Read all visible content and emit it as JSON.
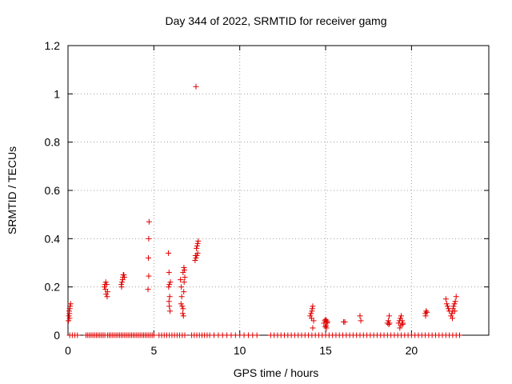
{
  "chart_data": {
    "type": "scatter",
    "title": "Day 344 of 2022, SRMTID for receiver gamg",
    "xlabel": "GPS time / hours",
    "ylabel": "SRMTID / TECUs",
    "xlim": [
      0,
      24.5
    ],
    "ylim": [
      0,
      1.2
    ],
    "xticks": [
      0,
      5,
      10,
      15,
      20
    ],
    "xtick_labels": [
      "0",
      "5",
      "10",
      "15",
      "20"
    ],
    "yticks": [
      0,
      0.2,
      0.4,
      0.6,
      0.8,
      1.0,
      1.2
    ],
    "ytick_labels": [
      "0",
      "0.2",
      "0.4",
      "0.6",
      "0.8",
      "1",
      "1.2"
    ],
    "grid": true,
    "marker": "plus",
    "marker_color": "#e00000",
    "series": [
      {
        "name": "SRMTID",
        "points": [
          [
            0.03,
            0.06
          ],
          [
            0.05,
            0.08
          ],
          [
            0.07,
            0.1
          ],
          [
            0.09,
            0.07
          ],
          [
            0.1,
            0.11
          ],
          [
            0.12,
            0.12
          ],
          [
            0.15,
            0.13
          ],
          [
            0.08,
            0.09
          ],
          [
            2.15,
            0.21
          ],
          [
            2.2,
            0.22
          ],
          [
            2.25,
            0.21
          ],
          [
            2.18,
            0.19
          ],
          [
            2.22,
            0.17
          ],
          [
            2.28,
            0.16
          ],
          [
            2.3,
            0.18
          ],
          [
            2.12,
            0.2
          ],
          [
            3.1,
            0.21
          ],
          [
            3.15,
            0.22
          ],
          [
            3.2,
            0.24
          ],
          [
            3.25,
            0.25
          ],
          [
            3.18,
            0.23
          ],
          [
            3.28,
            0.24
          ],
          [
            3.12,
            0.2
          ],
          [
            3.22,
            0.25
          ],
          [
            4.72,
            0.47
          ],
          [
            4.7,
            0.4
          ],
          [
            4.68,
            0.32
          ],
          [
            4.7,
            0.245
          ],
          [
            4.66,
            0.19
          ],
          [
            5.85,
            0.34
          ],
          [
            5.88,
            0.26
          ],
          [
            5.9,
            0.21
          ],
          [
            5.86,
            0.2
          ],
          [
            5.92,
            0.16
          ],
          [
            5.88,
            0.14
          ],
          [
            5.9,
            0.12
          ],
          [
            5.94,
            0.1
          ],
          [
            5.96,
            0.22
          ],
          [
            6.55,
            0.23
          ],
          [
            6.6,
            0.2
          ],
          [
            6.62,
            0.16
          ],
          [
            6.58,
            0.13
          ],
          [
            6.65,
            0.12
          ],
          [
            6.7,
            0.11
          ],
          [
            6.68,
            0.09
          ],
          [
            6.72,
            0.08
          ],
          [
            6.7,
            0.26
          ],
          [
            6.75,
            0.28
          ],
          [
            6.78,
            0.27
          ],
          [
            6.8,
            0.24
          ],
          [
            6.76,
            0.22
          ],
          [
            6.74,
            0.18
          ],
          [
            7.45,
            1.03
          ],
          [
            7.4,
            0.31
          ],
          [
            7.45,
            0.32
          ],
          [
            7.5,
            0.33
          ],
          [
            7.55,
            0.34
          ],
          [
            7.48,
            0.36
          ],
          [
            7.52,
            0.37
          ],
          [
            7.55,
            0.38
          ],
          [
            7.58,
            0.39
          ],
          [
            7.42,
            0.33
          ],
          [
            14.1,
            0.08
          ],
          [
            14.15,
            0.09
          ],
          [
            14.2,
            0.1
          ],
          [
            14.22,
            0.11
          ],
          [
            14.25,
            0.12
          ],
          [
            14.18,
            0.07
          ],
          [
            14.3,
            0.06
          ],
          [
            14.25,
            0.03
          ],
          [
            14.9,
            0.05
          ],
          [
            14.95,
            0.06
          ],
          [
            15.0,
            0.065
          ],
          [
            15.05,
            0.06
          ],
          [
            15.1,
            0.055
          ],
          [
            15.02,
            0.04
          ],
          [
            14.98,
            0.035
          ],
          [
            15.08,
            0.05
          ],
          [
            15.05,
            0.03
          ],
          [
            16.05,
            0.055
          ],
          [
            16.12,
            0.055
          ],
          [
            17.0,
            0.08
          ],
          [
            17.05,
            0.06
          ],
          [
            18.6,
            0.05
          ],
          [
            18.65,
            0.06
          ],
          [
            18.7,
            0.08
          ],
          [
            18.72,
            0.05
          ],
          [
            18.68,
            0.045
          ],
          [
            19.25,
            0.05
          ],
          [
            19.3,
            0.06
          ],
          [
            19.35,
            0.07
          ],
          [
            19.4,
            0.08
          ],
          [
            19.45,
            0.06
          ],
          [
            19.5,
            0.05
          ],
          [
            19.38,
            0.04
          ],
          [
            19.32,
            0.03
          ],
          [
            19.48,
            0.045
          ],
          [
            20.8,
            0.09
          ],
          [
            20.85,
            0.1
          ],
          [
            20.9,
            0.095
          ],
          [
            20.82,
            0.08
          ],
          [
            22.0,
            0.15
          ],
          [
            22.05,
            0.13
          ],
          [
            22.1,
            0.12
          ],
          [
            22.15,
            0.11
          ],
          [
            22.2,
            0.1
          ],
          [
            22.3,
            0.08
          ],
          [
            22.35,
            0.09
          ],
          [
            22.4,
            0.1
          ],
          [
            22.42,
            0.11
          ],
          [
            22.45,
            0.12
          ],
          [
            22.5,
            0.13
          ],
          [
            22.55,
            0.14
          ],
          [
            22.6,
            0.16
          ],
          [
            22.52,
            0.1
          ],
          [
            22.38,
            0.07
          ]
        ],
        "zero_x": [
          0.1,
          0.25,
          0.4,
          0.55,
          1.05,
          1.15,
          1.25,
          1.35,
          1.45,
          1.55,
          1.65,
          1.75,
          1.85,
          1.95,
          2.05,
          2.15,
          2.3,
          2.4,
          2.5,
          2.6,
          2.7,
          2.8,
          2.9,
          3.0,
          3.1,
          3.2,
          3.3,
          3.4,
          3.5,
          3.6,
          3.7,
          3.8,
          3.9,
          4.0,
          4.1,
          4.2,
          4.3,
          4.4,
          4.5,
          4.6,
          4.7,
          4.8,
          4.9,
          5.0,
          5.3,
          5.45,
          5.6,
          5.75,
          5.9,
          6.05,
          6.2,
          6.35,
          6.5,
          6.65,
          6.8,
          7.2,
          7.35,
          7.5,
          7.65,
          7.8,
          7.95,
          8.1,
          8.25,
          8.5,
          8.75,
          9.0,
          9.25,
          9.5,
          9.75,
          10.0,
          10.25,
          10.5,
          10.75,
          11.0,
          11.8,
          12.0,
          12.2,
          12.4,
          12.6,
          12.8,
          13.0,
          13.2,
          13.4,
          13.6,
          13.8,
          14.0,
          14.2,
          14.4,
          14.6,
          14.8,
          15.0,
          15.2,
          15.4,
          15.6,
          15.8,
          16.0,
          16.2,
          16.4,
          16.6,
          16.8,
          17.0,
          17.2,
          17.4,
          17.6,
          17.8,
          18.0,
          18.2,
          18.4,
          18.6,
          18.8,
          19.0,
          19.2,
          19.4,
          19.6,
          19.8,
          20.0,
          20.2,
          20.4,
          20.6,
          20.8,
          21.0,
          21.2,
          21.4,
          21.6,
          21.8,
          22.0,
          22.2,
          22.4,
          22.6,
          22.8
        ]
      }
    ]
  }
}
